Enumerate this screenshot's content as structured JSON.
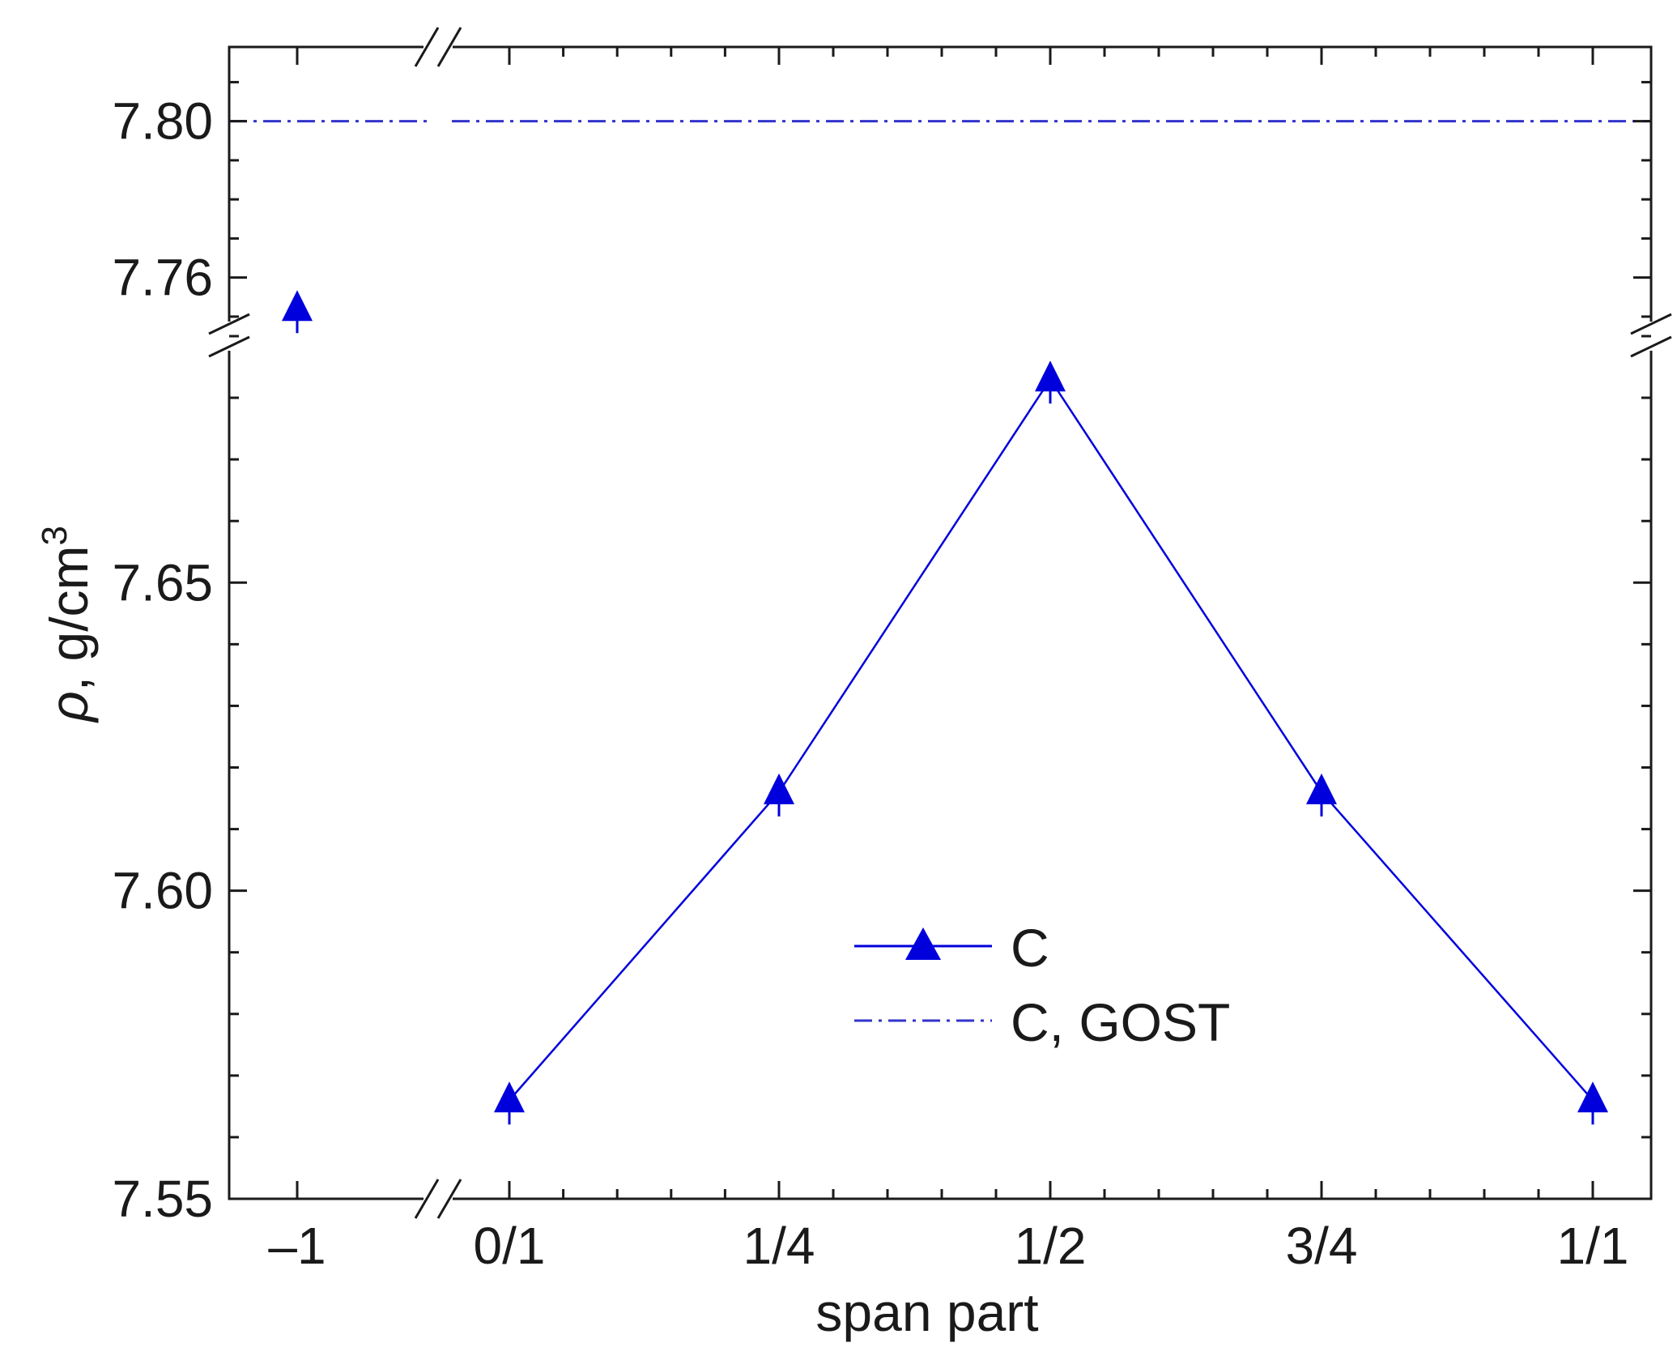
{
  "chart_data": {
    "type": "line",
    "x_axis": {
      "label": "span part",
      "broken": true,
      "categories": [
        "–1",
        "0/1",
        "1/4",
        "1/2",
        "3/4",
        "1/1"
      ]
    },
    "y_axis": {
      "label_symbol": "ρ",
      "label_text": ", g/cm",
      "label_superscript": "3",
      "broken": true,
      "lower_segment": {
        "range": [
          7.55,
          7.69
        ],
        "ticks": [
          7.55,
          7.6,
          7.65
        ],
        "tick_labels": [
          "7.55",
          "7.60",
          "7.65"
        ]
      },
      "upper_segment": {
        "range": [
          7.745,
          7.819
        ],
        "ticks": [
          7.76,
          7.8
        ],
        "tick_labels": [
          "7.76",
          "7.80"
        ]
      }
    },
    "series": [
      {
        "name": "C",
        "style": "line+triangle",
        "color": "#0000dd",
        "points": [
          {
            "x": "–1",
            "y": 7.752
          },
          {
            "x": "0/1",
            "y": 7.566
          },
          {
            "x": "1/4",
            "y": 7.616
          },
          {
            "x": "1/2",
            "y": 7.683
          },
          {
            "x": "3/4",
            "y": 7.616
          },
          {
            "x": "1/1",
            "y": 7.566
          }
        ],
        "connected_from": "0/1"
      },
      {
        "name": "C, GOST",
        "style": "dash-dot",
        "color": "#3333cc",
        "value": 7.8
      }
    ],
    "legend": {
      "position": "lower-center",
      "entries": [
        "C",
        "C, GOST"
      ]
    }
  }
}
